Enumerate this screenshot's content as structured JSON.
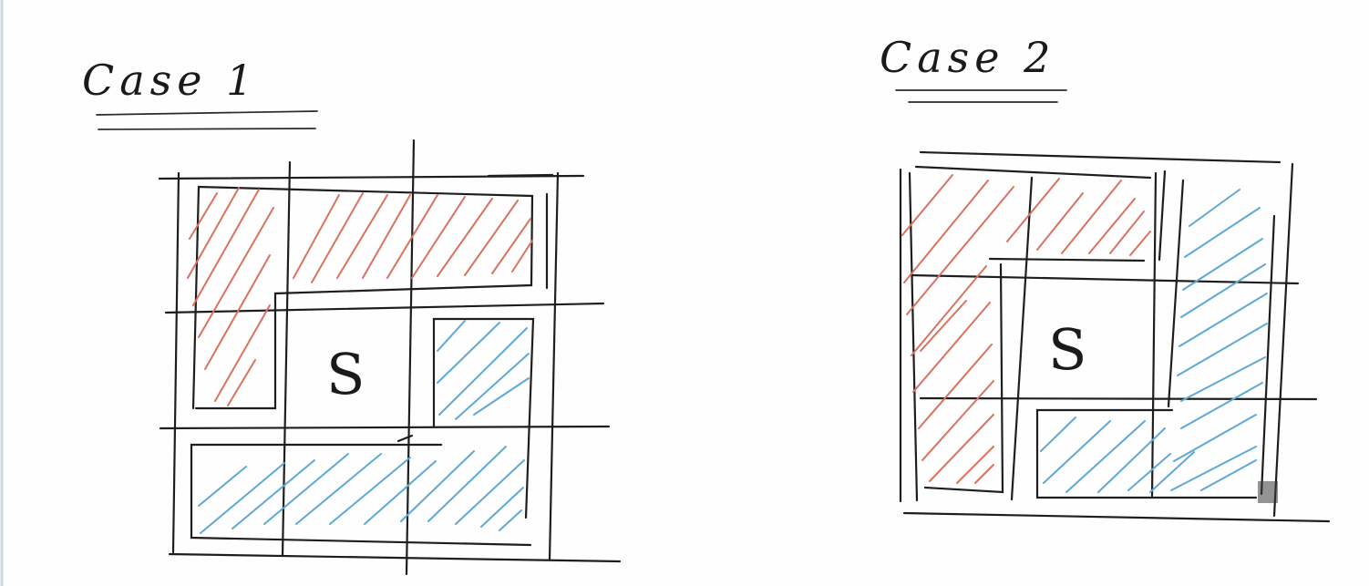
{
  "case1": {
    "title": "Case 1",
    "center_label": "S"
  },
  "case2": {
    "title": "Case 2",
    "center_label": "S"
  },
  "colors": {
    "ink": "#1e1e1e",
    "red_hatch": "#d9725f",
    "blue_hatch": "#5fa8d6"
  }
}
